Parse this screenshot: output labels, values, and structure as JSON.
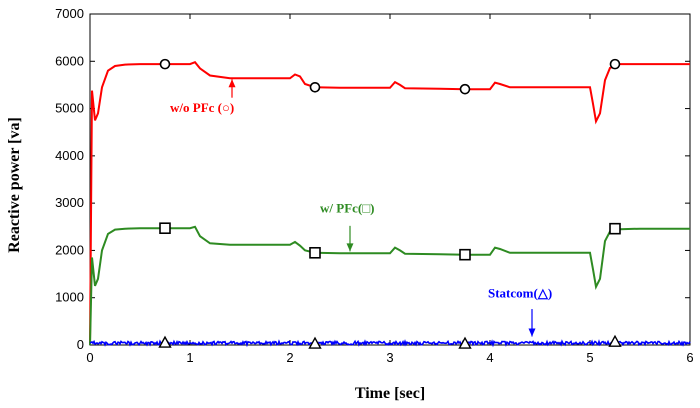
{
  "chart_data": {
    "type": "line",
    "xlabel": "Time [sec]",
    "ylabel": "Reactive power [va]",
    "xlim": [
      0,
      6
    ],
    "ylim": [
      0,
      7000
    ],
    "x_ticks": [
      "0",
      "1",
      "2",
      "3",
      "4",
      "5",
      "6"
    ],
    "y_ticks": [
      "0",
      "1000",
      "2000",
      "3000",
      "4000",
      "5000",
      "6000",
      "7000"
    ],
    "grid": false,
    "series": [
      {
        "name": "w/o PFc (○)",
        "color": "#ff0000",
        "marker": "circle",
        "x": [
          0,
          0.02,
          0.05,
          0.08,
          0.12,
          0.18,
          0.25,
          0.35,
          0.5,
          0.75,
          1.0,
          1.05,
          1.1,
          1.2,
          1.4,
          1.7,
          2.0,
          2.05,
          2.1,
          2.15,
          2.25,
          2.5,
          2.8,
          3.0,
          3.05,
          3.1,
          3.15,
          3.5,
          3.75,
          4.0,
          4.05,
          4.1,
          4.2,
          4.5,
          4.8,
          5.0,
          5.03,
          5.06,
          5.1,
          5.15,
          5.2,
          5.3,
          5.5,
          5.8,
          6.0
        ],
        "y": [
          0,
          5380,
          4750,
          4900,
          5450,
          5800,
          5900,
          5930,
          5940,
          5940,
          5940,
          5980,
          5850,
          5700,
          5640,
          5640,
          5640,
          5720,
          5680,
          5520,
          5450,
          5440,
          5440,
          5440,
          5560,
          5500,
          5430,
          5420,
          5410,
          5410,
          5550,
          5520,
          5450,
          5450,
          5450,
          5450,
          5100,
          4730,
          4900,
          5600,
          5860,
          5940,
          5940,
          5940,
          5940
        ],
        "marker_x": [
          0.75,
          2.25,
          3.75,
          5.25
        ],
        "marker_y": [
          5940,
          5450,
          5410,
          5940
        ]
      },
      {
        "name": "w/ PFc(□)",
        "color": "#2e8b22",
        "marker": "square",
        "x": [
          0,
          0.02,
          0.05,
          0.08,
          0.12,
          0.18,
          0.25,
          0.35,
          0.5,
          0.75,
          1.0,
          1.05,
          1.1,
          1.2,
          1.4,
          1.7,
          2.0,
          2.05,
          2.1,
          2.15,
          2.25,
          2.5,
          2.8,
          3.0,
          3.05,
          3.1,
          3.15,
          3.5,
          3.75,
          4.0,
          4.05,
          4.1,
          4.2,
          4.5,
          4.8,
          5.0,
          5.03,
          5.06,
          5.1,
          5.15,
          5.2,
          5.3,
          5.5,
          5.8,
          6.0
        ],
        "y": [
          0,
          1850,
          1250,
          1400,
          2000,
          2350,
          2440,
          2460,
          2470,
          2470,
          2470,
          2500,
          2300,
          2150,
          2120,
          2120,
          2120,
          2180,
          2100,
          2000,
          1950,
          1940,
          1940,
          1940,
          2060,
          2000,
          1930,
          1920,
          1910,
          1910,
          2060,
          2030,
          1950,
          1950,
          1950,
          1950,
          1600,
          1230,
          1400,
          2200,
          2400,
          2450,
          2460,
          2460,
          2460
        ],
        "marker_x": [
          0.75,
          2.25,
          3.75,
          5.25
        ],
        "marker_y": [
          2470,
          1950,
          1910,
          2460
        ]
      },
      {
        "name": "Statcom(△)",
        "color": "#0000ff",
        "marker": "triangle",
        "noise": true,
        "baseline": 30,
        "amplitude": 70,
        "marker_x": [
          0.75,
          2.25,
          3.75,
          5.25
        ],
        "marker_y": [
          40,
          20,
          20,
          60
        ]
      }
    ],
    "annotations": [
      {
        "text": "w/o PFc (○)",
        "series": 0,
        "color": "#ff0000",
        "text_x": 0.8,
        "text_y": 4930,
        "arrow_from": [
          1.42,
          5230
        ],
        "arrow_to": [
          1.42,
          5620
        ]
      },
      {
        "text": "w/ PFc(□)",
        "series": 1,
        "color": "#2e8b22",
        "text_x": 2.3,
        "text_y": 2800,
        "arrow_from": [
          2.6,
          2520
        ],
        "arrow_to": [
          2.6,
          1980
        ]
      },
      {
        "text": "Statcom(△)",
        "series": 2,
        "color": "#0000ff",
        "text_x": 3.98,
        "text_y": 1000,
        "arrow_from": [
          4.42,
          760
        ],
        "arrow_to": [
          4.42,
          180
        ]
      }
    ]
  }
}
